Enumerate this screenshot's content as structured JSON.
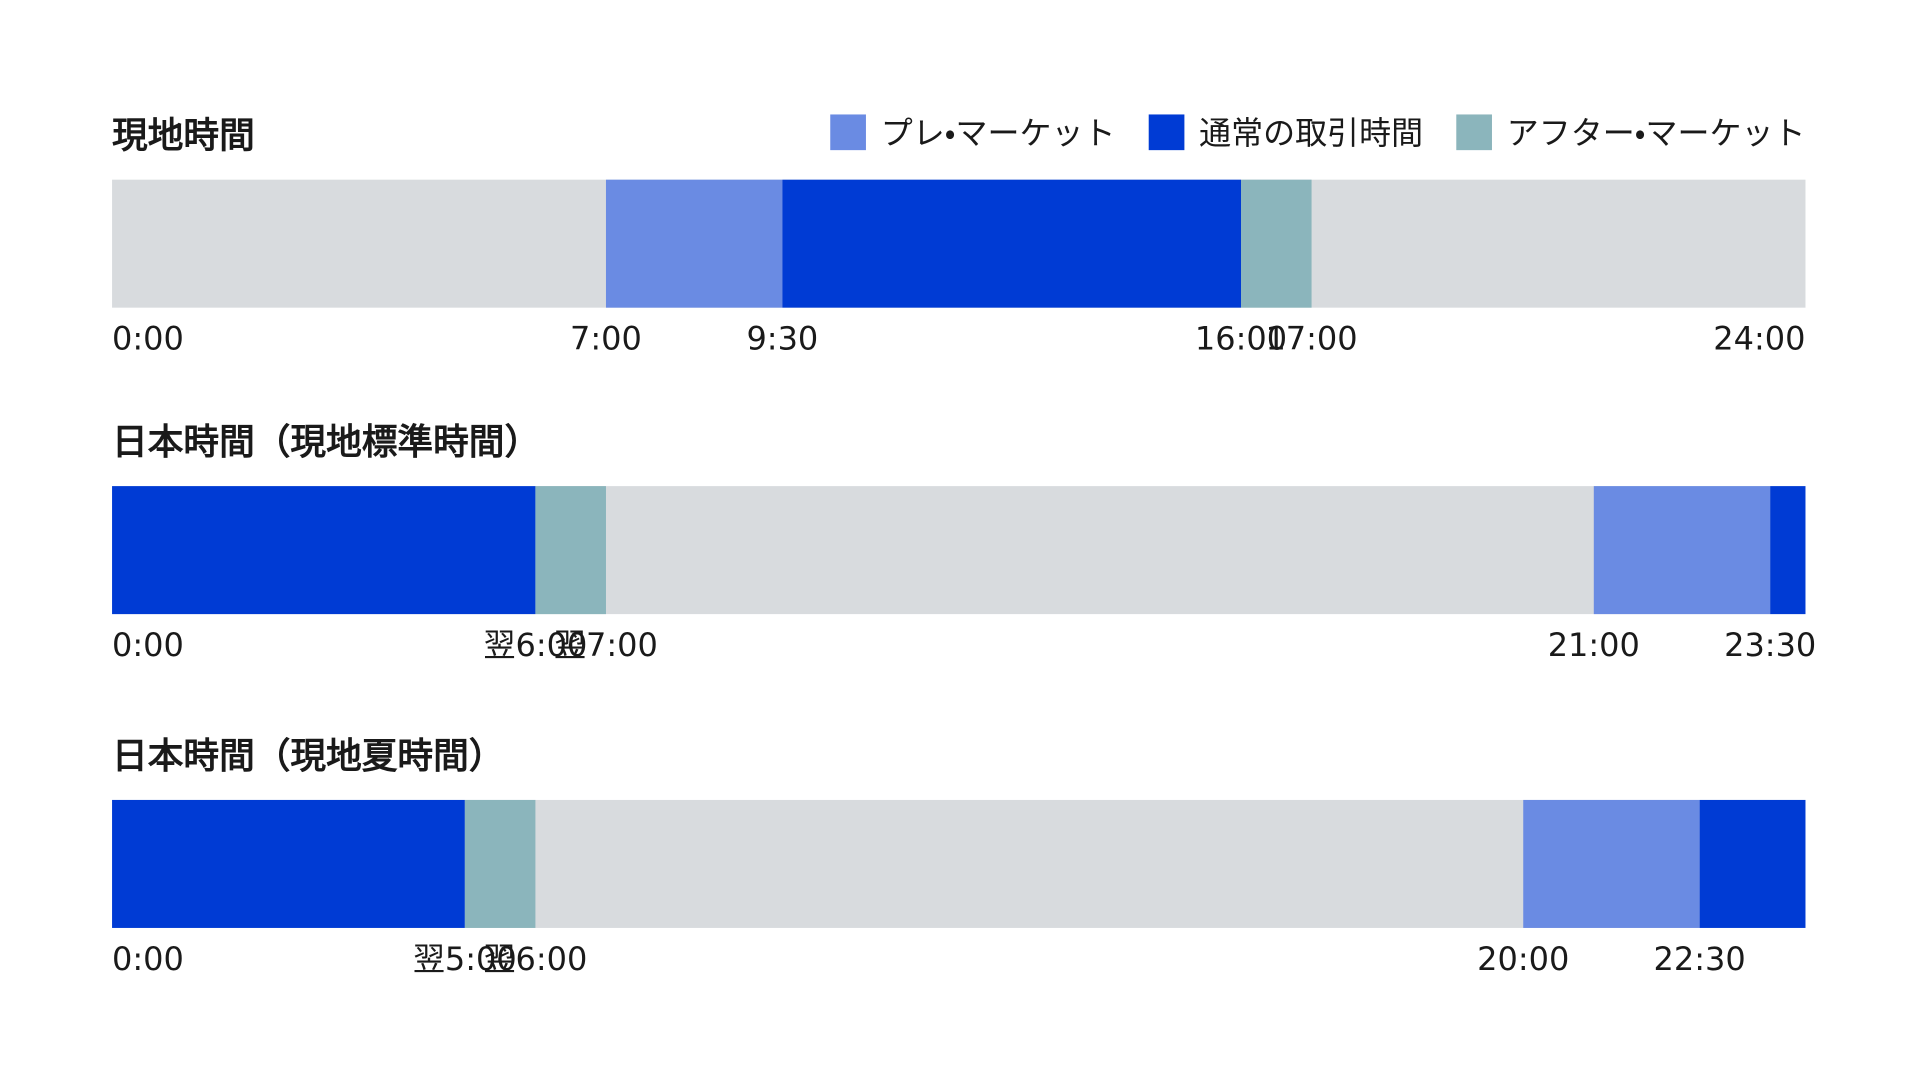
{
  "chart_data": {
    "type": "timeline",
    "xlim": [
      0,
      24
    ],
    "background_color": "#d8dbde",
    "legend": [
      {
        "name": "プレ・マーケット",
        "color": "#6a8be3"
      },
      {
        "name": "通常の取引時間",
        "color": "#003bd4"
      },
      {
        "name": "アフター・マーケット",
        "color": "#8bb5bc"
      }
    ],
    "rows": [
      {
        "title": "現地時間",
        "segments": [
          [
            [
              7,
              9.5
            ]
          ],
          [
            [
              9.5,
              16
            ]
          ],
          [
            [
              16,
              17
            ]
          ]
        ],
        "ticks": [
          {
            "value": 0,
            "label": "0:00"
          },
          {
            "value": 7,
            "label": "7:00"
          },
          {
            "value": 9.5,
            "label": "9:30"
          },
          {
            "value": 16,
            "label": "16:00"
          },
          {
            "value": 17,
            "label": "17:00"
          },
          {
            "value": 24,
            "label": "24:00"
          }
        ]
      },
      {
        "title": "日本時間（現地標準時間）",
        "segments": [
          [
            [
              21,
              23.5
            ]
          ],
          [
            [
              0,
              6
            ],
            [
              23.5,
              24
            ]
          ],
          [
            [
              6,
              7
            ]
          ]
        ],
        "ticks": [
          {
            "value": 0,
            "label": "0:00"
          },
          {
            "value": 6,
            "label": "翌6:00"
          },
          {
            "value": 7,
            "label": "翌7:00"
          },
          {
            "value": 21,
            "label": "21:00"
          },
          {
            "value": 23.5,
            "label": "23:30"
          }
        ]
      },
      {
        "title": "日本時間（現地夏時間）",
        "segments": [
          [
            [
              20,
              22.5
            ]
          ],
          [
            [
              0,
              5
            ],
            [
              22.5,
              24
            ]
          ],
          [
            [
              5,
              6
            ]
          ]
        ],
        "ticks": [
          {
            "value": 0,
            "label": "0:00"
          },
          {
            "value": 5,
            "label": "翌5:00"
          },
          {
            "value": 6,
            "label": "翌6:00"
          },
          {
            "value": 20,
            "label": "20:00"
          },
          {
            "value": 22.5,
            "label": "22:30"
          }
        ]
      }
    ]
  }
}
